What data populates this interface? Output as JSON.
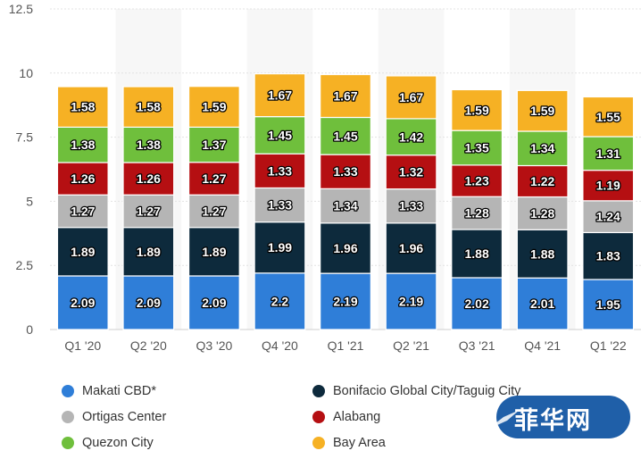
{
  "chart_data": {
    "type": "bar",
    "stacked": true,
    "categories": [
      "Q1 '20",
      "Q2 '20",
      "Q3 '20",
      "Q4 '20",
      "Q1 '21",
      "Q2 '21",
      "Q3 '21",
      "Q4 '21",
      "Q1 '22"
    ],
    "y_ticks": [
      "0",
      "2.5",
      "5",
      "7.5",
      "10",
      "12.5"
    ],
    "ylim": [
      0,
      12.5
    ],
    "grid": true,
    "legend_position": "bottom",
    "series": [
      {
        "name": "Makati CBD*",
        "color": "#2f7ed8",
        "values": [
          2.09,
          2.09,
          2.09,
          2.2,
          2.19,
          2.19,
          2.02,
          2.01,
          1.95
        ]
      },
      {
        "name": "Bonifacio Global City/Taguig City",
        "color": "#0d2a3c",
        "values": [
          1.89,
          1.89,
          1.89,
          1.99,
          1.96,
          1.96,
          1.88,
          1.88,
          1.83
        ]
      },
      {
        "name": "Ortigas Center",
        "color": "#b5b5b5",
        "values": [
          1.27,
          1.27,
          1.27,
          1.33,
          1.34,
          1.33,
          1.28,
          1.28,
          1.24
        ]
      },
      {
        "name": "Alabang",
        "color": "#b50f12",
        "values": [
          1.26,
          1.26,
          1.27,
          1.33,
          1.33,
          1.32,
          1.23,
          1.22,
          1.19
        ]
      },
      {
        "name": "Quezon City",
        "color": "#6fbf3c",
        "values": [
          1.38,
          1.38,
          1.37,
          1.45,
          1.45,
          1.42,
          1.35,
          1.34,
          1.31
        ]
      },
      {
        "name": "Bay Area",
        "color": "#f6b124",
        "values": [
          1.58,
          1.58,
          1.59,
          1.67,
          1.67,
          1.67,
          1.59,
          1.59,
          1.55
        ]
      }
    ]
  },
  "watermark": {
    "text": "菲华网"
  }
}
